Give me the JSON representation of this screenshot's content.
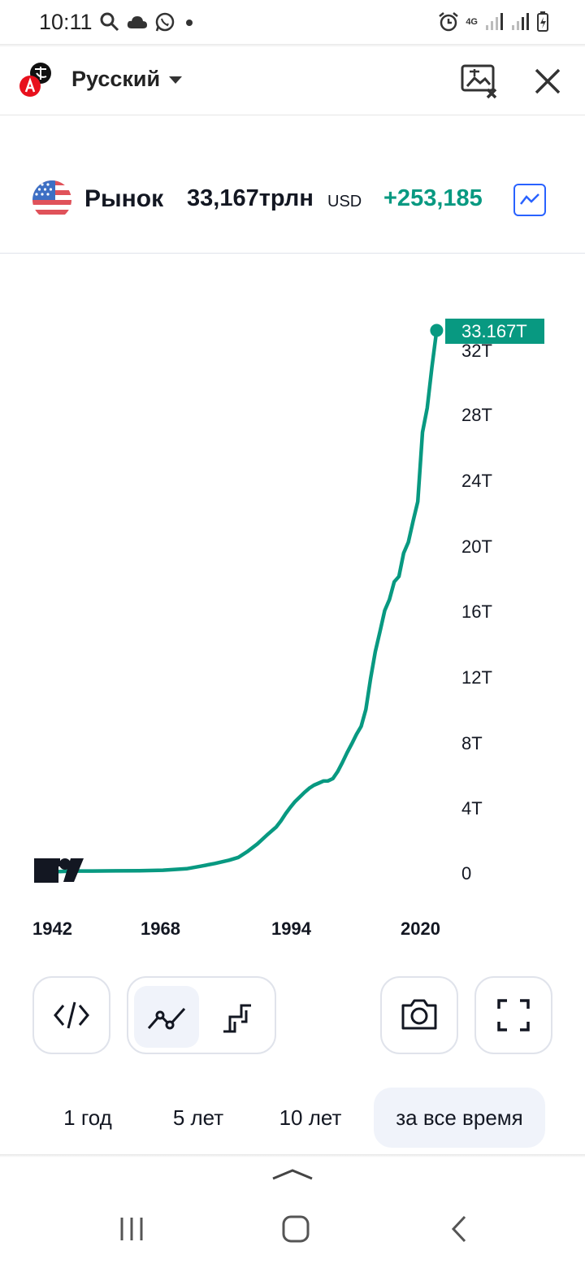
{
  "status_bar": {
    "time": "10:11",
    "network": "4G"
  },
  "translate_bar": {
    "language": "Русский"
  },
  "header": {
    "title": "Рынок",
    "value": "33,167трлн",
    "currency": "USD",
    "change": "+253,185"
  },
  "chart_data": {
    "type": "line",
    "y_ticks": [
      "0",
      "4T",
      "8T",
      "12T",
      "16T",
      "20T",
      "24T",
      "28T",
      "32T"
    ],
    "x_ticks": [
      "1942",
      "1968",
      "1994",
      "2020"
    ],
    "ylim": [
      0,
      33.167
    ],
    "last_value_label": "33.167T",
    "line_color": "#089981",
    "points": [
      [
        1943,
        0.14
      ],
      [
        1946,
        0.17
      ],
      [
        1950,
        0.17
      ],
      [
        1955,
        0.18
      ],
      [
        1960,
        0.19
      ],
      [
        1965,
        0.22
      ],
      [
        1970,
        0.31
      ],
      [
        1973,
        0.46
      ],
      [
        1976,
        0.63
      ],
      [
        1979,
        0.83
      ],
      [
        1981,
        1.0
      ],
      [
        1983,
        1.38
      ],
      [
        1985,
        1.82
      ],
      [
        1987,
        2.35
      ],
      [
        1989,
        2.86
      ],
      [
        1990,
        3.23
      ],
      [
        1991,
        3.67
      ],
      [
        1992,
        4.06
      ],
      [
        1993,
        4.41
      ],
      [
        1994,
        4.69
      ],
      [
        1995,
        4.97
      ],
      [
        1996,
        5.22
      ],
      [
        1997,
        5.41
      ],
      [
        1998,
        5.53
      ],
      [
        1999,
        5.66
      ],
      [
        2000,
        5.67
      ],
      [
        2001,
        5.81
      ],
      [
        2002,
        6.23
      ],
      [
        2003,
        6.78
      ],
      [
        2004,
        7.38
      ],
      [
        2005,
        7.93
      ],
      [
        2006,
        8.51
      ],
      [
        2007,
        9.0
      ],
      [
        2008,
        10.03
      ],
      [
        2009,
        11.91
      ],
      [
        2010,
        13.56
      ],
      [
        2011,
        14.79
      ],
      [
        2012,
        16.07
      ],
      [
        2013,
        16.74
      ],
      [
        2014,
        17.82
      ],
      [
        2015,
        18.15
      ],
      [
        2016,
        19.57
      ],
      [
        2017,
        20.24
      ],
      [
        2018,
        21.52
      ],
      [
        2019,
        22.72
      ],
      [
        2020,
        26.95
      ],
      [
        2021,
        28.43
      ],
      [
        2022,
        30.93
      ],
      [
        2023,
        33.167
      ]
    ]
  },
  "chart_toolbar": {
    "buttons": [
      "embed",
      "line-chart",
      "step-chart",
      "screenshot",
      "fullscreen"
    ]
  },
  "periods": [
    {
      "label": "1 год",
      "active": false
    },
    {
      "label": "5 лет",
      "active": false
    },
    {
      "label": "10 лет",
      "active": false
    },
    {
      "label": "за все время",
      "active": true
    }
  ]
}
